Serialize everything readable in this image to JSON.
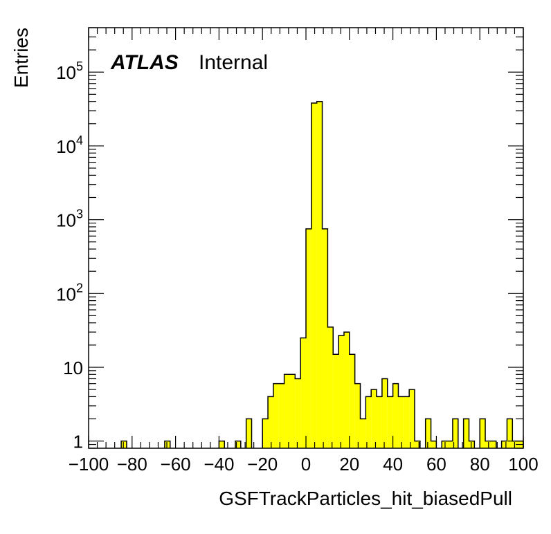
{
  "chart_data": {
    "type": "histogram",
    "xlabel": "GSFTrackParticles_hit_biasedPull",
    "ylabel": "Entries",
    "label_bold": "ATLAS",
    "label_normal": "Internal",
    "xlim": [
      -100,
      100
    ],
    "ylim": [
      0.8,
      400000
    ],
    "yscale": "log",
    "bin_width": 2.5,
    "fill_color": "#ffff00",
    "line_color": "#000000",
    "x_ticks": [
      "−100",
      "−80",
      "−60",
      "−40",
      "−20",
      "0",
      "20",
      "40",
      "60",
      "80",
      "100"
    ],
    "x_tick_values": [
      -100,
      -80,
      -60,
      -40,
      -20,
      0,
      20,
      40,
      60,
      80,
      100
    ],
    "y_ticks": [
      {
        "value": 1,
        "base": "1",
        "exp": ""
      },
      {
        "value": 10,
        "base": "10",
        "exp": ""
      },
      {
        "value": 100,
        "base": "10",
        "exp": "2"
      },
      {
        "value": 1000,
        "base": "10",
        "exp": "3"
      },
      {
        "value": 10000,
        "base": "10",
        "exp": "4"
      },
      {
        "value": 100000,
        "base": "10",
        "exp": "5"
      }
    ],
    "bins": [
      {
        "x0": -85.0,
        "y": 1
      },
      {
        "x0": -65.0,
        "y": 1
      },
      {
        "x0": -40.0,
        "y": 1
      },
      {
        "x0": -32.5,
        "y": 1
      },
      {
        "x0": -27.5,
        "y": 2
      },
      {
        "x0": -20.0,
        "y": 2
      },
      {
        "x0": -17.5,
        "y": 4
      },
      {
        "x0": -15.0,
        "y": 6
      },
      {
        "x0": -12.5,
        "y": 6
      },
      {
        "x0": -10.0,
        "y": 8
      },
      {
        "x0": -7.5,
        "y": 8
      },
      {
        "x0": -5.0,
        "y": 7
      },
      {
        "x0": -2.5,
        "y": 25
      },
      {
        "x0": -0.0,
        "y": 750
      },
      {
        "x0": 2.5,
        "y": 38000
      },
      {
        "x0": 5.0,
        "y": 40000
      },
      {
        "x0": 7.5,
        "y": 750
      },
      {
        "x0": 10.0,
        "y": 35
      },
      {
        "x0": 12.5,
        "y": 15
      },
      {
        "x0": 15.0,
        "y": 27
      },
      {
        "x0": 17.5,
        "y": 30
      },
      {
        "x0": 20.0,
        "y": 15
      },
      {
        "x0": 22.5,
        "y": 6
      },
      {
        "x0": 25.0,
        "y": 2
      },
      {
        "x0": 27.5,
        "y": 4
      },
      {
        "x0": 30.0,
        "y": 5
      },
      {
        "x0": 32.5,
        "y": 4
      },
      {
        "x0": 35.0,
        "y": 7
      },
      {
        "x0": 37.5,
        "y": 4
      },
      {
        "x0": 40.0,
        "y": 6
      },
      {
        "x0": 42.5,
        "y": 4
      },
      {
        "x0": 45.0,
        "y": 4
      },
      {
        "x0": 47.5,
        "y": 5
      },
      {
        "x0": 50.0,
        "y": 1
      },
      {
        "x0": 55.0,
        "y": 2
      },
      {
        "x0": 57.5,
        "y": 1
      },
      {
        "x0": 62.5,
        "y": 1
      },
      {
        "x0": 65.0,
        "y": 1
      },
      {
        "x0": 67.5,
        "y": 2
      },
      {
        "x0": 72.5,
        "y": 2
      },
      {
        "x0": 75.0,
        "y": 1
      },
      {
        "x0": 80.0,
        "y": 2
      },
      {
        "x0": 82.5,
        "y": 1
      },
      {
        "x0": 85.0,
        "y": 1
      },
      {
        "x0": 90.0,
        "y": 1
      },
      {
        "x0": 92.5,
        "y": 2
      },
      {
        "x0": 95.0,
        "y": 1
      },
      {
        "x0": 97.5,
        "y": 1
      }
    ]
  }
}
